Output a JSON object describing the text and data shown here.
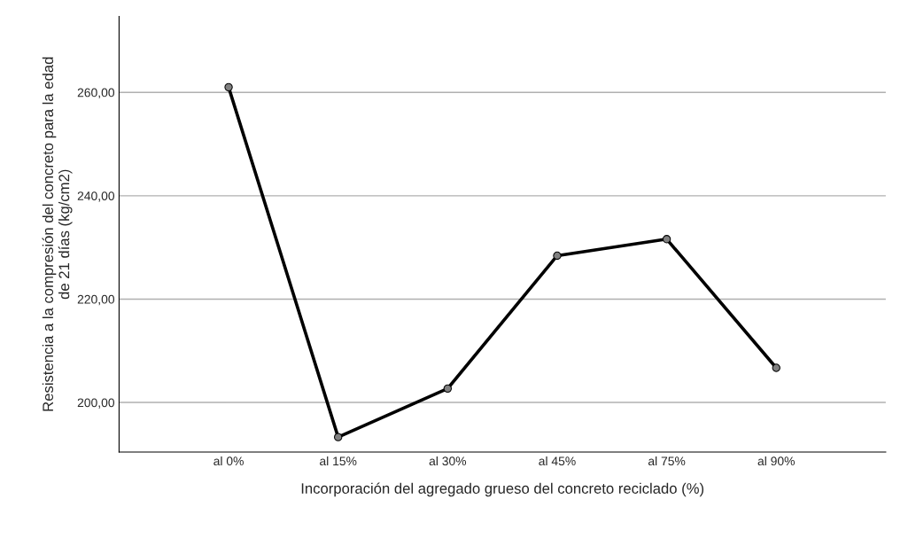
{
  "chart_data": {
    "type": "line",
    "xlabel": "Incorporación del agregado grueso del concreto reciclado (%)",
    "ylabel": "Resistencia a la compresión del concreto para la edad\nde 21 días (kg/cm2)",
    "categories": [
      "al 0%",
      "al 15%",
      "al 30%",
      "al 45%",
      "al 75%",
      "al 90%"
    ],
    "series": [
      {
        "color": "#000000",
        "values": [
          261.0,
          193.3,
          202.7,
          228.4,
          231.6,
          206.7
        ]
      }
    ],
    "ylim": [
      190.4,
      274.7
    ],
    "yticks": [
      {
        "value": 200,
        "label": "200,00"
      },
      {
        "value": 220,
        "label": "220,00"
      },
      {
        "value": 240,
        "label": "240,00"
      },
      {
        "value": 260,
        "label": "260,00"
      }
    ],
    "grid": "y",
    "marker": "circle",
    "line_style": "solid",
    "legend": false
  }
}
